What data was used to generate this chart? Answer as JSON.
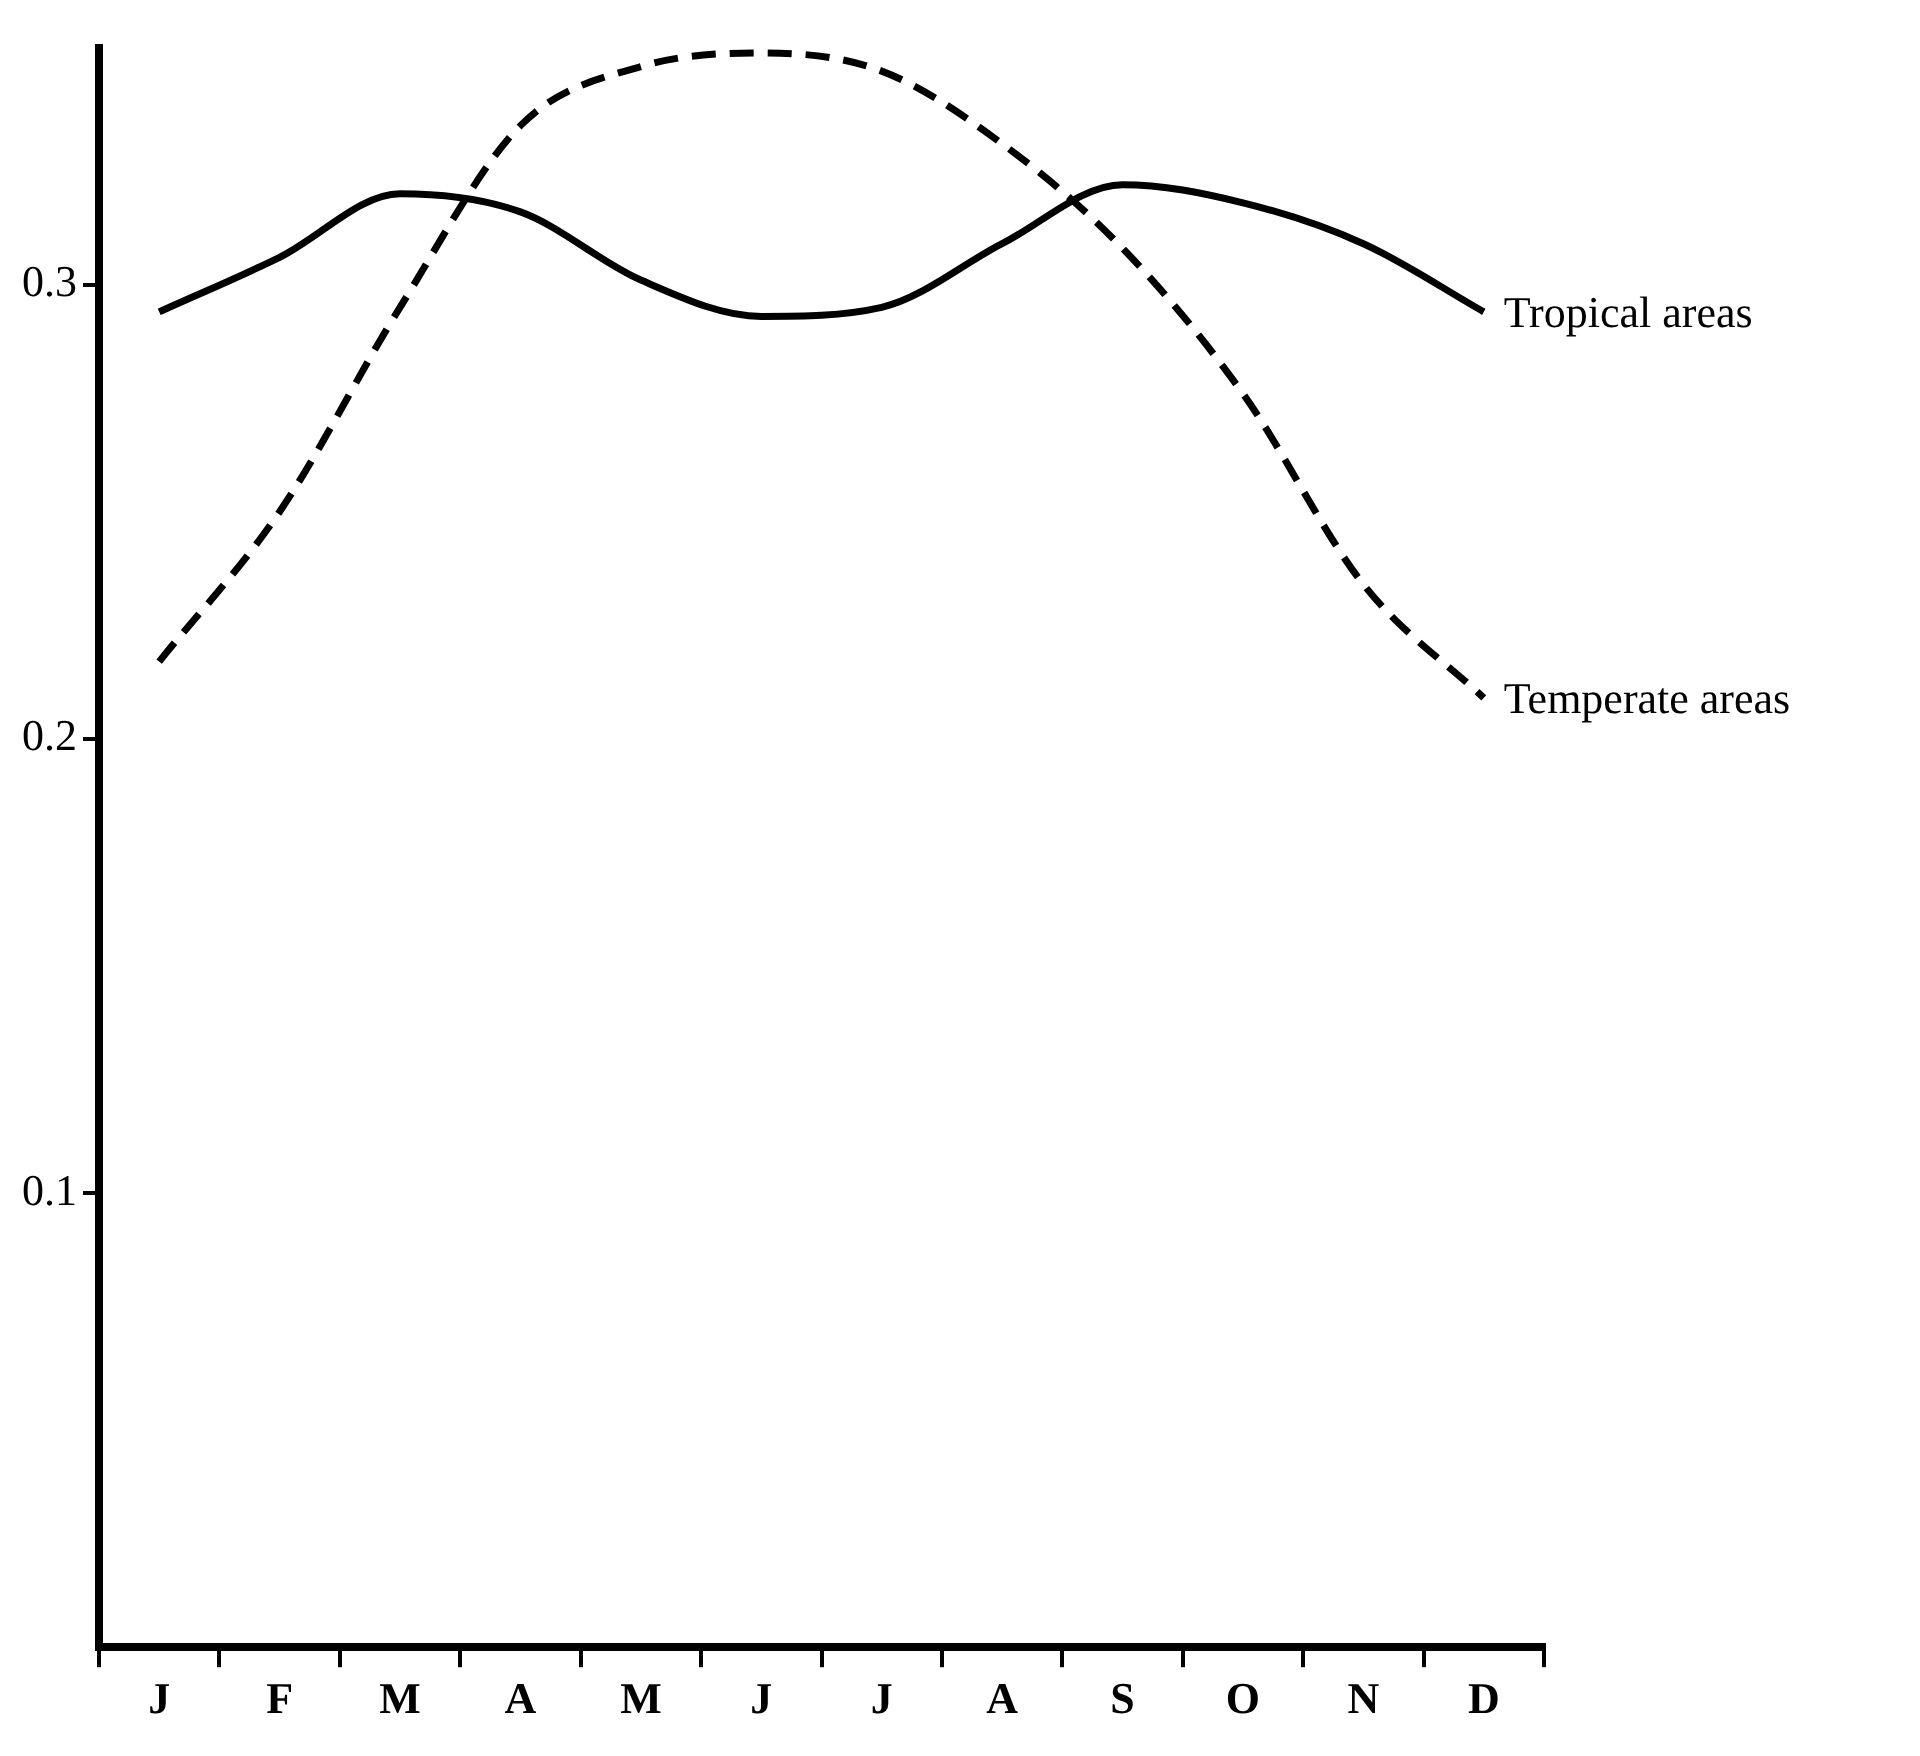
{
  "chart_data": {
    "type": "line",
    "ylim": [
      0,
      0.352
    ],
    "categories": [
      "J",
      "F",
      "M",
      "A",
      "M",
      "J",
      "J",
      "A",
      "S",
      "O",
      "N",
      "D"
    ],
    "yticks": [
      0.1,
      0.2,
      0.3
    ],
    "grid": false,
    "legend": false,
    "marker": "none",
    "series": [
      {
        "name": "Tropical areas",
        "color": "#000000",
        "line_style": "solid",
        "values": [
          0.294,
          0.306,
          0.32,
          0.316,
          0.301,
          0.293,
          0.295,
          0.309,
          0.322,
          0.318,
          0.309,
          0.294
        ]
      },
      {
        "name": "Temperate areas",
        "color": "#000000",
        "line_style": "dashed",
        "values": [
          0.217,
          0.25,
          0.295,
          0.335,
          0.348,
          0.351,
          0.347,
          0.331,
          0.308,
          0.276,
          0.234,
          0.209
        ]
      }
    ]
  }
}
